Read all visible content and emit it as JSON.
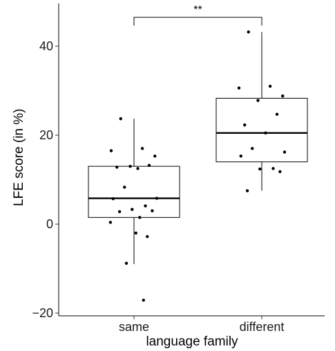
{
  "chart_data": {
    "type": "box",
    "xlabel": "language family",
    "ylabel": "LFE score (in %)",
    "ylim": [
      -20,
      50
    ],
    "yticks": [
      -20,
      0,
      20,
      40
    ],
    "grid": false,
    "categories": [
      "same",
      "different"
    ],
    "boxes": [
      {
        "category": "same",
        "whisker_low": -9,
        "q1": 1.5,
        "median": 5.8,
        "q3": 13,
        "whisker_high": 23.7
      },
      {
        "category": "different",
        "whisker_low": 7.5,
        "q1": 14,
        "median": 20.5,
        "q3": 28.3,
        "whisker_high": 43.2
      }
    ],
    "points": [
      {
        "category": "same",
        "values": [
          23.7,
          17,
          16.5,
          15.3,
          13,
          13.2,
          12.8,
          12.5,
          8.3,
          5.8,
          5.7,
          4.1,
          3.3,
          3.0,
          2.8,
          1.5,
          0.4,
          -2.0,
          -2.8,
          -8.8,
          -17.1
        ]
      },
      {
        "category": "different",
        "values": [
          43.2,
          31,
          30.6,
          28.8,
          27.8,
          24.7,
          22.3,
          20.5,
          17,
          16.2,
          15.3,
          12.5,
          12.4,
          11.8,
          7.5
        ]
      }
    ],
    "significance": {
      "label": "**",
      "between": [
        "same",
        "different"
      ],
      "y": 46.5
    }
  }
}
